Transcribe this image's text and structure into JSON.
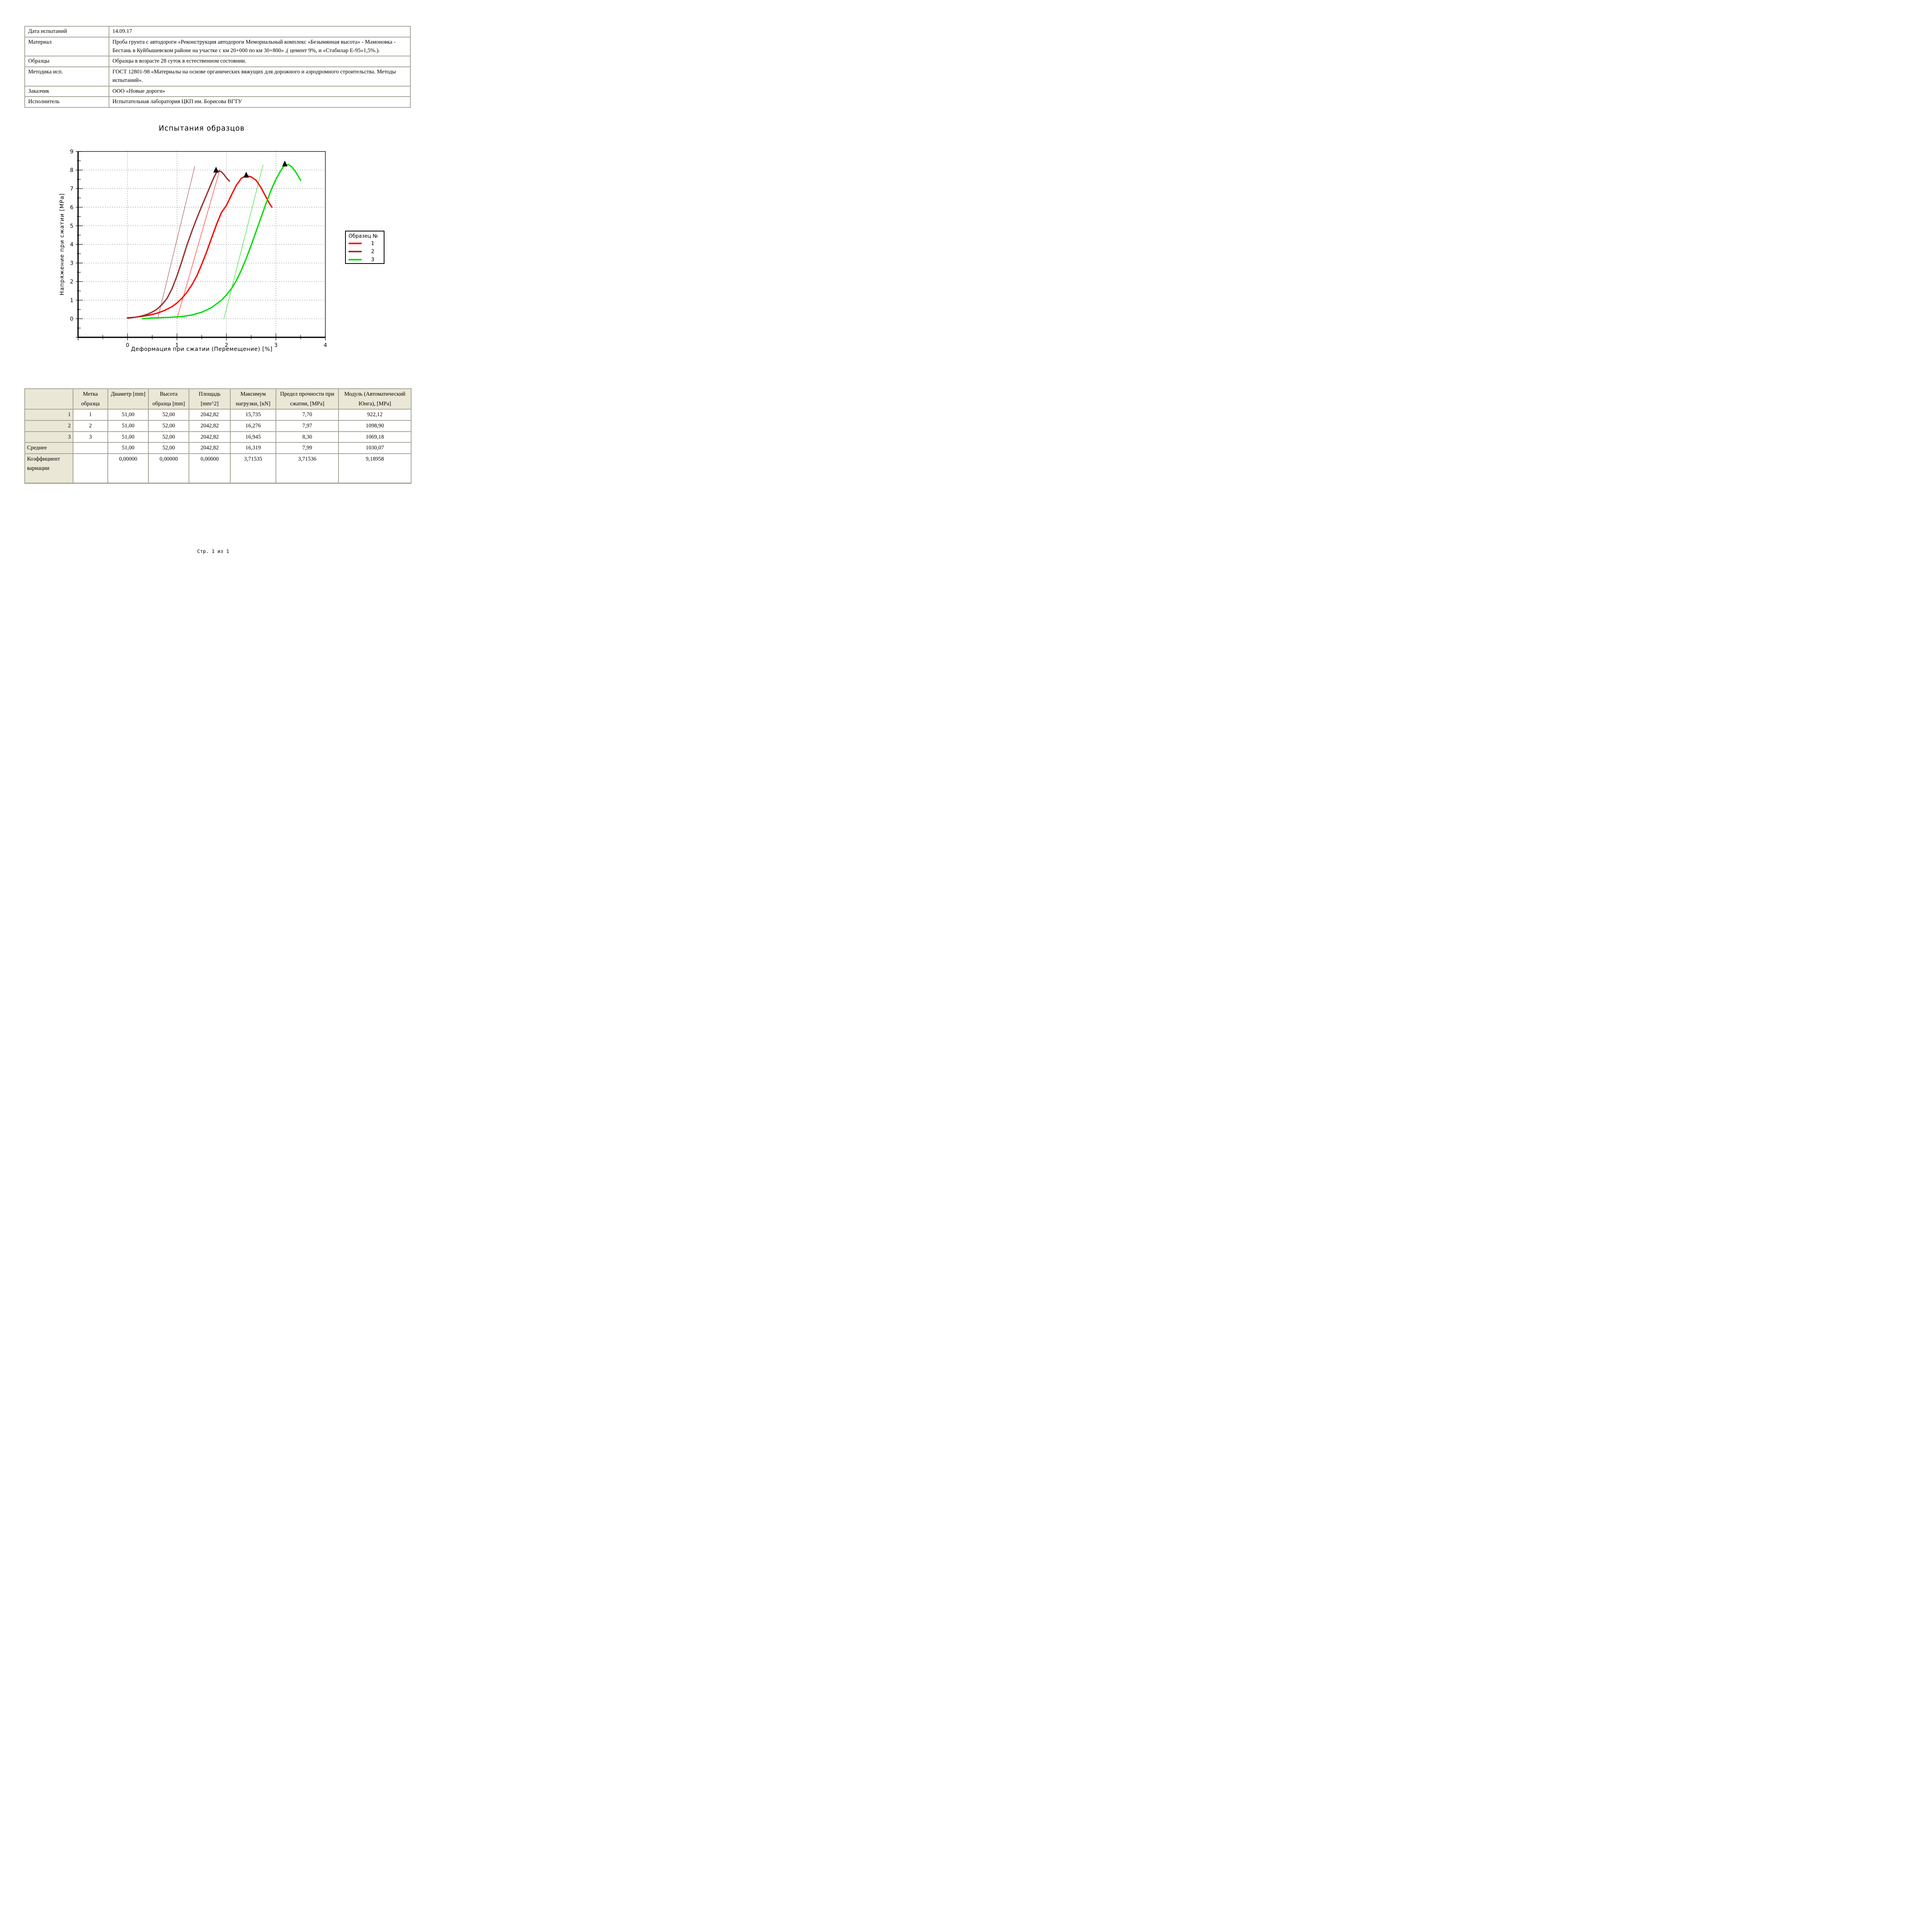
{
  "page": {
    "footer": "Стр. 1 из 1"
  },
  "info_table": {
    "rows": [
      {
        "label": "Дата испытаний",
        "value": "14.09.17"
      },
      {
        "label": "Материал",
        "value": "Проба грунта с автодороги «Реконструкция автодороги Мемориальный комплекс «Безымянная высота» - Мамоновка - Бестань в Куйбышевском районе на участке с км 20+000 по км 30+800» ,( цемент 9%, и «Стабилар Е-95»1,5%.)."
      },
      {
        "label": "Образцы",
        "value": "Образцы в возрасте 28 суток в естественном состоянии."
      },
      {
        "label": "Методика исп.",
        "value": "ГОСТ 12801-98 «Материалы на основе органических вяжущих для дорожного и аэродромного строительства. Методы испытаний»."
      },
      {
        "label": "Заказчик",
        "value": "ООО «Новые дороги»"
      },
      {
        "label": "Исполнитель",
        "value": "Испытательная лаборатория ЦКП им. Борисова ВГТУ"
      }
    ]
  },
  "chart_data": {
    "type": "line",
    "title": "Испытания образцов",
    "xlabel": "Деформация при сжатии (Перемещение) [%]",
    "ylabel": "Напряжение при сжатии [МРа]",
    "xlim": [
      -1,
      4
    ],
    "ylim": [
      -1,
      9
    ],
    "xticks": [
      0,
      1,
      2,
      3,
      4
    ],
    "yticks": [
      0,
      1,
      2,
      3,
      4,
      5,
      6,
      7,
      8,
      9
    ],
    "minor_tick_step": 0.5,
    "grid": true,
    "grid_color": "#7a7a7a",
    "legend_title": "Образец №",
    "legend_position": "right",
    "marker": {
      "shape": "triangle",
      "color": "#000000"
    },
    "series": [
      {
        "name": "1",
        "color": "#ff0000",
        "peak": [
          2.4,
          7.7
        ],
        "tangent": [
          [
            1.0,
            0.0
          ],
          [
            1.87,
            8.05
          ]
        ],
        "points": [
          [
            0.0,
            0.05
          ],
          [
            0.15,
            0.08
          ],
          [
            0.3,
            0.13
          ],
          [
            0.45,
            0.2
          ],
          [
            0.6,
            0.3
          ],
          [
            0.75,
            0.45
          ],
          [
            0.9,
            0.65
          ],
          [
            1.0,
            0.85
          ],
          [
            1.1,
            1.1
          ],
          [
            1.2,
            1.42
          ],
          [
            1.3,
            1.82
          ],
          [
            1.4,
            2.3
          ],
          [
            1.5,
            2.92
          ],
          [
            1.6,
            3.6
          ],
          [
            1.7,
            4.35
          ],
          [
            1.8,
            5.08
          ],
          [
            1.9,
            5.72
          ],
          [
            2.0,
            6.1
          ],
          [
            2.1,
            6.65
          ],
          [
            2.2,
            7.18
          ],
          [
            2.3,
            7.55
          ],
          [
            2.4,
            7.7
          ],
          [
            2.5,
            7.63
          ],
          [
            2.6,
            7.45
          ],
          [
            2.7,
            7.05
          ],
          [
            2.8,
            6.55
          ],
          [
            2.88,
            6.15
          ],
          [
            2.92,
            6.0
          ]
        ]
      },
      {
        "name": "2",
        "color": "#993333",
        "peak": [
          1.79,
          7.97
        ],
        "tangent": [
          [
            0.61,
            0.0
          ],
          [
            1.36,
            8.2
          ]
        ],
        "points": [
          [
            0.0,
            0.03
          ],
          [
            0.1,
            0.06
          ],
          [
            0.2,
            0.1
          ],
          [
            0.3,
            0.16
          ],
          [
            0.4,
            0.24
          ],
          [
            0.5,
            0.36
          ],
          [
            0.6,
            0.52
          ],
          [
            0.7,
            0.77
          ],
          [
            0.8,
            1.1
          ],
          [
            0.9,
            1.62
          ],
          [
            1.0,
            2.3
          ],
          [
            1.1,
            3.1
          ],
          [
            1.2,
            3.95
          ],
          [
            1.3,
            4.7
          ],
          [
            1.4,
            5.4
          ],
          [
            1.5,
            6.05
          ],
          [
            1.6,
            6.68
          ],
          [
            1.7,
            7.32
          ],
          [
            1.75,
            7.62
          ],
          [
            1.8,
            7.88
          ],
          [
            1.85,
            7.95
          ],
          [
            1.9,
            7.9
          ],
          [
            1.95,
            7.76
          ],
          [
            2.0,
            7.58
          ],
          [
            2.06,
            7.4
          ]
        ]
      },
      {
        "name": "3",
        "color": "#00dd00",
        "peak": [
          3.18,
          8.3
        ],
        "tangent": [
          [
            1.95,
            0.0
          ],
          [
            2.74,
            8.28
          ]
        ],
        "points": [
          [
            0.3,
            0.0
          ],
          [
            0.5,
            0.04
          ],
          [
            0.7,
            0.06
          ],
          [
            0.9,
            0.08
          ],
          [
            1.1,
            0.12
          ],
          [
            1.3,
            0.2
          ],
          [
            1.5,
            0.35
          ],
          [
            1.7,
            0.6
          ],
          [
            1.9,
            1.0
          ],
          [
            2.0,
            1.28
          ],
          [
            2.1,
            1.62
          ],
          [
            2.2,
            2.05
          ],
          [
            2.3,
            2.6
          ],
          [
            2.4,
            3.25
          ],
          [
            2.5,
            3.95
          ],
          [
            2.6,
            4.7
          ],
          [
            2.7,
            5.45
          ],
          [
            2.8,
            6.2
          ],
          [
            2.9,
            6.9
          ],
          [
            3.0,
            7.5
          ],
          [
            3.1,
            7.98
          ],
          [
            3.17,
            8.25
          ],
          [
            3.25,
            8.3
          ],
          [
            3.32,
            8.18
          ],
          [
            3.4,
            7.9
          ],
          [
            3.5,
            7.45
          ]
        ]
      }
    ]
  },
  "results_table": {
    "headers": [
      "",
      "Метка образца",
      "Диаметр [mm]",
      "Высота образца [mm]",
      "Площадь [mm^2]",
      "Максимум нагрузки, [кN]",
      "Предел прочности при сжатии, [МРа]",
      "Модуль (Автоматический Юнга), [МРа]"
    ],
    "rows": [
      {
        "label": "1",
        "cells": [
          "1",
          "51,00",
          "52,00",
          "2042,82",
          "15,735",
          "7,70",
          "922,12"
        ]
      },
      {
        "label": "2",
        "cells": [
          "2",
          "51,00",
          "52,00",
          "2042,82",
          "16,276",
          "7,97",
          "1098,90"
        ]
      },
      {
        "label": "3",
        "cells": [
          "3",
          "51,00",
          "52,00",
          "2042,82",
          "16,945",
          "8,30",
          "1069,18"
        ]
      },
      {
        "label": "Среднее",
        "cells": [
          "",
          "51,00",
          "52,00",
          "2042,82",
          "16,319",
          "7,99",
          "1030,07"
        ]
      },
      {
        "label": "Коэффициент вариации",
        "cells": [
          "",
          "0,00000",
          "0,00000",
          "0,00000",
          "3,71535",
          "3,71536",
          "9,18958"
        ]
      }
    ]
  }
}
